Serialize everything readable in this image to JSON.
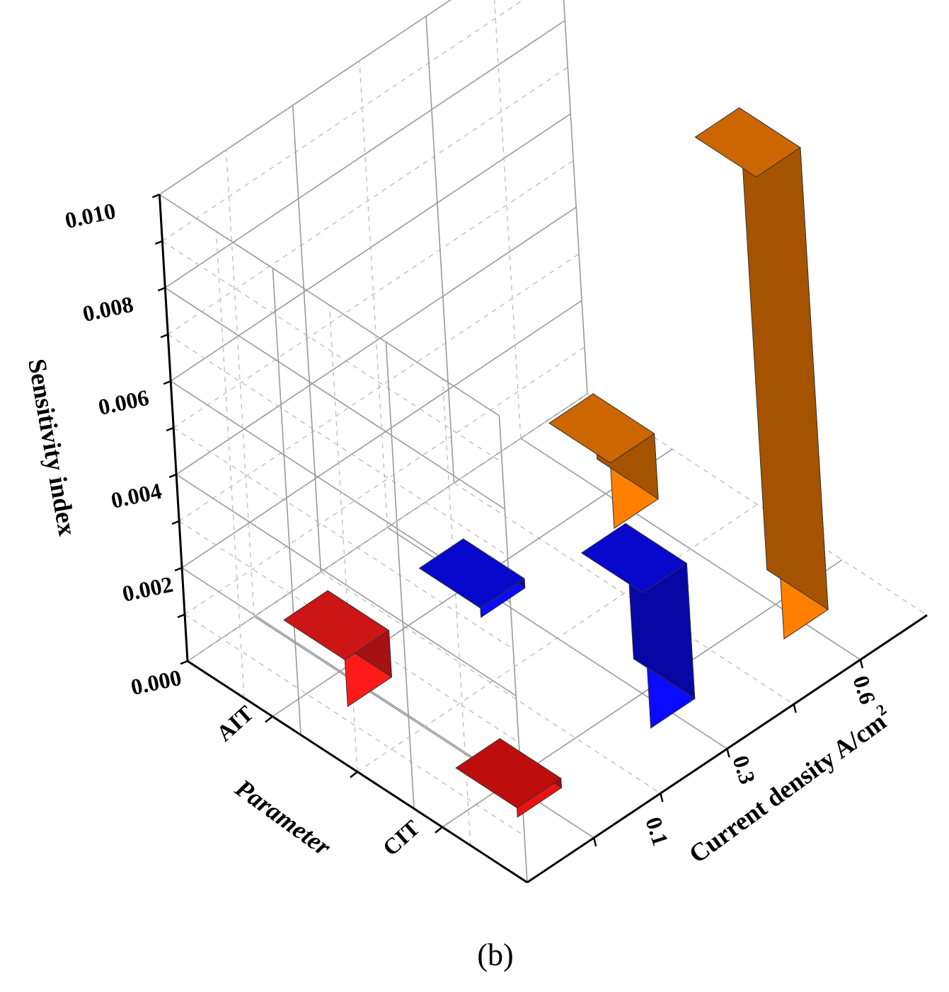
{
  "chart_data": {
    "type": "bar3d",
    "caption": "(b)",
    "zlabel": "Sensitivity  index",
    "xlabel": "Current density  A/cm",
    "xlabel_superscript": "2",
    "ylabel": "Parameter",
    "zlim": [
      0,
      0.01
    ],
    "z_ticks": [
      "0.000",
      "0.002",
      "0.004",
      "0.006",
      "0.008",
      "0.010"
    ],
    "x_categories": [
      "0.1",
      "0.3",
      "0.6"
    ],
    "y_categories": [
      "AIT",
      "CIT"
    ],
    "grid": true,
    "series": [
      {
        "x": "0.1",
        "y": "AIT",
        "value": 0.001,
        "color": "#ff1a1a"
      },
      {
        "x": "0.3",
        "y": "AIT",
        "value": 0.0002,
        "color": "#0a0aff"
      },
      {
        "x": "0.6",
        "y": "AIT",
        "value": 0.0014,
        "color": "#ff8000"
      },
      {
        "x": "0.1",
        "y": "CIT",
        "value": 0.0002,
        "color": "#ee1010"
      },
      {
        "x": "0.3",
        "y": "CIT",
        "value": 0.0029,
        "color": "#0a0aff"
      },
      {
        "x": "0.6",
        "y": "CIT",
        "value": 0.0099,
        "color": "#ff8000"
      }
    ]
  }
}
